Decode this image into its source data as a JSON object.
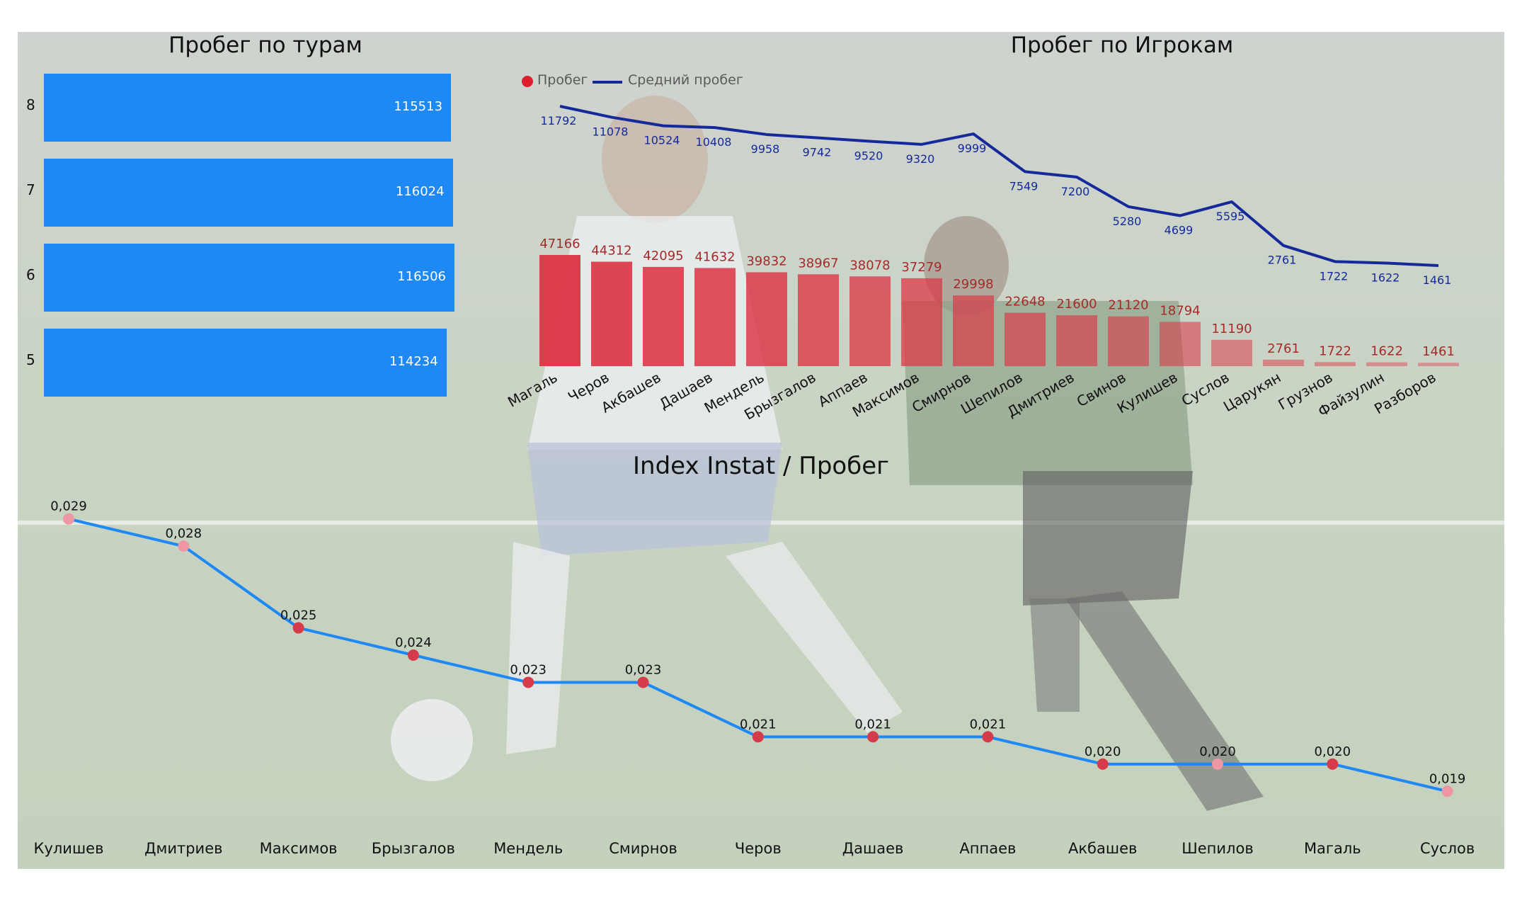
{
  "colors": {
    "panel": "#d6d6d6",
    "tour_bar": "#1e88f5",
    "player_bar": "#dc3545",
    "avg_line": "#15299a",
    "index_line": "#1e88f5",
    "index_marker_dark": "#d63b4b",
    "index_marker_light": "#ec97a3"
  },
  "tours_title": "Пробег по турам",
  "players_title": "Пробег по Игрокам",
  "index_title": "Index Instat / Пробег",
  "legend": {
    "series1": "Пробег",
    "series2": "Средний пробег"
  },
  "chart_data": [
    {
      "type": "bar",
      "orientation": "horizontal",
      "title": "Пробег по турам",
      "categories": [
        "8",
        "7",
        "6",
        "5"
      ],
      "values": [
        115513,
        116024,
        116506,
        114234
      ],
      "value_labels": [
        "115513",
        "116024",
        "116506",
        "114234"
      ]
    },
    {
      "type": "bar",
      "title": "Пробег по Игрокам",
      "legend_position": "top-left",
      "categories": [
        "Магаль",
        "Черов",
        "Акбашев",
        "Дашаев",
        "Мендель",
        "Брызгалов",
        "Аппаев",
        "Максимов",
        "Смирнов",
        "Шепилов",
        "Дмитриев",
        "Свинов",
        "Кулишев",
        "Суслов",
        "Царукян",
        "Грузнов",
        "Файзулин",
        "Разборов"
      ],
      "series": [
        {
          "name": "Пробег",
          "type": "bar",
          "values": [
            47166,
            44312,
            42095,
            41632,
            39832,
            38967,
            38078,
            37279,
            29998,
            22648,
            21600,
            21120,
            18794,
            11190,
            2761,
            1722,
            1622,
            1461
          ]
        },
        {
          "name": "Средний пробег",
          "type": "line",
          "values": [
            11792,
            11078,
            10524,
            10408,
            9958,
            9742,
            9520,
            9320,
            9999,
            7549,
            7200,
            5280,
            4699,
            5595,
            2761,
            1722,
            1622,
            1461
          ]
        }
      ]
    },
    {
      "type": "line",
      "title": "Index Instat / Пробег",
      "categories": [
        "Кулишев",
        "Дмитриев",
        "Максимов",
        "Брызгалов",
        "Мендель",
        "Смирнов",
        "Черов",
        "Дашаев",
        "Аппаев",
        "Акбашев",
        "Шепилов",
        "Магаль",
        "Суслов"
      ],
      "values": [
        0.029,
        0.028,
        0.025,
        0.024,
        0.023,
        0.023,
        0.021,
        0.021,
        0.021,
        0.02,
        0.02,
        0.02,
        0.019
      ],
      "value_labels": [
        "0,029",
        "0,028",
        "0,025",
        "0,024",
        "0,023",
        "0,023",
        "0,021",
        "0,021",
        "0,021",
        "0,020",
        "0,020",
        "0,020",
        "0,019"
      ]
    }
  ]
}
